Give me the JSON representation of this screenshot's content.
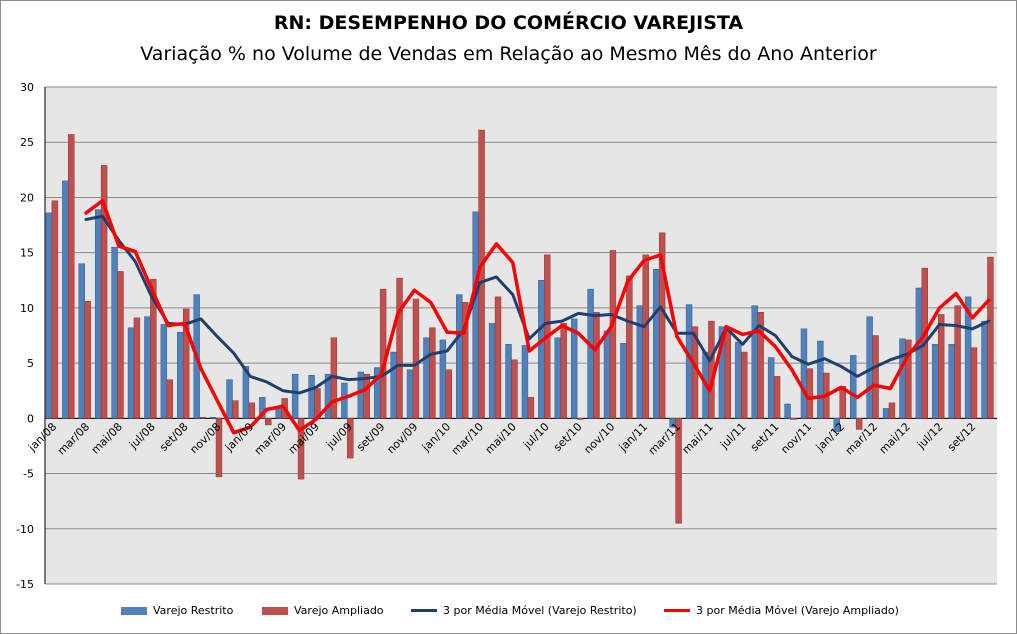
{
  "title": "RN: DESEMPENHO DO COMÉRCIO VAREJISTA",
  "subtitle": "Variação % no Volume de Vendas em Relação ao Mesmo Mês do Ano Anterior",
  "colors": {
    "restrito_bar": "#4F81BD",
    "ampliado_bar": "#C0504D",
    "restrito_line": "#1F3F6E",
    "ampliado_line": "#FF0000",
    "plot_bg": "#E6E6E6",
    "grid": "#8C8C8C"
  },
  "chart_data": {
    "type": "bar",
    "title": "RN: DESEMPENHO DO COMÉRCIO VAREJISTA",
    "subtitle": "Variação % no Volume de Vendas em Relação ao Mesmo Mês do Ano Anterior",
    "ylim": [
      -15,
      30
    ],
    "yticks": [
      -15,
      -10,
      -5,
      0,
      5,
      10,
      15,
      20,
      25,
      30
    ],
    "grid": true,
    "legend_position": "bottom",
    "x_tick_labels": [
      "jan/08",
      "mar/08",
      "mai/08",
      "jul/08",
      "set/08",
      "nov/08",
      "jan/09",
      "mar/09",
      "mai/09",
      "jul/09",
      "set/09",
      "nov/09",
      "jan/10",
      "mar/10",
      "mai/10",
      "jul/10",
      "set/10",
      "nov/10",
      "jan/11",
      "mar/11",
      "mai/11",
      "jul/11",
      "set/11",
      "nov/11",
      "jan/12",
      "mar/12",
      "mai/12",
      "jul/12",
      "set/12"
    ],
    "categories": [
      "jan/08",
      "fev/08",
      "mar/08",
      "abr/08",
      "mai/08",
      "jun/08",
      "jul/08",
      "ago/08",
      "set/08",
      "out/08",
      "nov/08",
      "dez/08",
      "jan/09",
      "fev/09",
      "mar/09",
      "abr/09",
      "mai/09",
      "jun/09",
      "jul/09",
      "ago/09",
      "set/09",
      "out/09",
      "nov/09",
      "dez/09",
      "jan/10",
      "fev/10",
      "mar/10",
      "abr/10",
      "mai/10",
      "jun/10",
      "jul/10",
      "ago/10",
      "set/10",
      "out/10",
      "nov/10",
      "dez/10",
      "jan/11",
      "fev/11",
      "mar/11",
      "abr/11",
      "mai/11",
      "jun/11",
      "jul/11",
      "ago/11",
      "set/11",
      "out/11",
      "nov/11",
      "dez/11",
      "jan/12",
      "fev/12",
      "mar/12",
      "abr/12",
      "mai/12",
      "jun/12",
      "jul/12",
      "ago/12",
      "set/12",
      "out/12"
    ],
    "series": [
      {
        "name": "Varejo Restrito",
        "kind": "bar",
        "values": [
          18.6,
          21.5,
          14.0,
          18.9,
          15.5,
          8.2,
          9.2,
          8.5,
          7.8,
          11.2,
          0.1,
          3.5,
          4.7,
          1.9,
          1.0,
          4.0,
          3.9,
          4.0,
          3.2,
          4.2,
          4.6,
          6.0,
          4.4,
          7.3,
          7.1,
          11.2,
          18.7,
          8.6,
          6.7,
          6.6,
          12.5,
          7.3,
          9.0,
          11.7,
          7.9,
          6.8,
          10.2,
          13.5,
          -0.8,
          10.3,
          6.0,
          8.3,
          6.9,
          10.2,
          5.5,
          1.3,
          8.1,
          7.0,
          -1.2,
          5.7,
          9.2,
          0.9,
          7.2,
          11.8,
          6.7,
          6.7,
          11.0,
          8.8
        ]
      },
      {
        "name": "Varejo Ampliado",
        "kind": "bar",
        "values": [
          19.7,
          25.7,
          10.6,
          22.9,
          13.3,
          9.1,
          12.6,
          3.5,
          9.9,
          0.1,
          -5.3,
          1.6,
          1.4,
          -0.6,
          1.8,
          -5.5,
          2.7,
          7.3,
          -3.6,
          4.0,
          11.7,
          12.7,
          10.8,
          8.2,
          4.4,
          10.5,
          26.1,
          11.0,
          5.3,
          1.9,
          14.8,
          8.6,
          -0.1,
          9.6,
          15.2,
          12.9,
          14.8,
          16.8,
          -9.5,
          8.3,
          8.8,
          8.1,
          6.0,
          9.6,
          3.8,
          -0.1,
          4.5,
          4.1,
          2.9,
          -1.0,
          7.5,
          1.4,
          7.1,
          13.6,
          9.4,
          10.2,
          6.4,
          14.6
        ]
      },
      {
        "name": "3 por Média Móvel (Varejo Restrito)",
        "kind": "line",
        "values": [
          null,
          null,
          18.0,
          18.3,
          16.1,
          14.2,
          11.0,
          8.6,
          8.5,
          9.0,
          7.4,
          5.9,
          3.8,
          3.3,
          2.5,
          2.3,
          2.8,
          3.8,
          3.5,
          3.6,
          3.8,
          4.8,
          4.8,
          5.8,
          6.1,
          8.0,
          12.3,
          12.8,
          11.2,
          7.2,
          8.6,
          8.8,
          9.5,
          9.3,
          9.4,
          8.8,
          8.3,
          10.1,
          7.7,
          7.7,
          5.2,
          8.2,
          6.7,
          8.4,
          7.5,
          5.6,
          4.9,
          5.4,
          4.7,
          3.8,
          4.6,
          5.3,
          5.8,
          6.6,
          8.5,
          8.4,
          8.1,
          8.8
        ]
      },
      {
        "name": "3 por Média Móvel (Varejo Ampliado)",
        "kind": "line",
        "values": [
          null,
          null,
          18.6,
          19.7,
          15.6,
          15.1,
          11.7,
          8.4,
          8.6,
          4.5,
          1.6,
          -1.3,
          -0.8,
          0.8,
          1.1,
          -1.1,
          -0.1,
          1.5,
          2.0,
          2.6,
          4.0,
          9.5,
          11.6,
          10.5,
          7.8,
          7.7,
          13.7,
          15.8,
          14.1,
          6.1,
          7.3,
          8.4,
          7.7,
          6.2,
          8.3,
          12.4,
          14.3,
          14.8,
          7.4,
          5.0,
          2.5,
          8.3,
          7.6,
          7.9,
          6.5,
          4.4,
          1.8,
          2.0,
          2.8,
          1.9,
          3.0,
          2.7,
          5.5,
          7.4,
          10.0,
          11.3,
          9.1,
          10.7
        ]
      }
    ]
  }
}
